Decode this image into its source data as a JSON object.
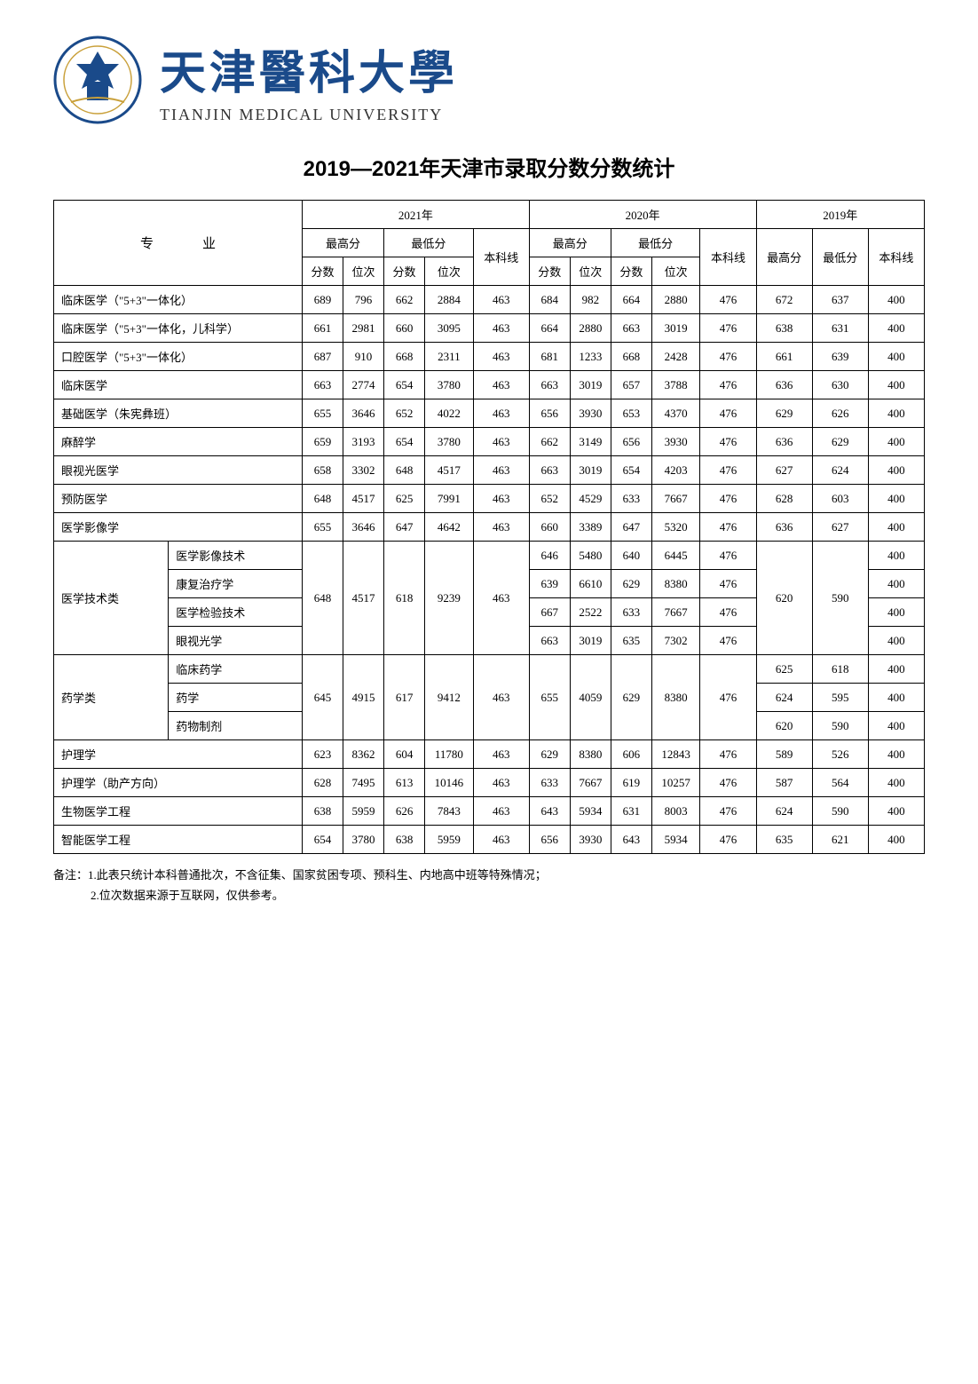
{
  "header": {
    "univ_cn": "天津醫科大學",
    "univ_en": "TIANJIN MEDICAL UNIVERSITY"
  },
  "title": "2019—2021年天津市录取分数分数统计",
  "table": {
    "header": {
      "major": "专　业",
      "year_2021": "2021年",
      "year_2020": "2020年",
      "year_2019": "2019年",
      "max": "最高分",
      "min": "最低分",
      "benke": "本科线",
      "score": "分数",
      "rank": "位次"
    },
    "rows": [
      {
        "name": "临床医学（\"5+3\"一体化）",
        "d": [
          689,
          796,
          662,
          2884,
          463,
          684,
          982,
          664,
          2880,
          476,
          672,
          637,
          400
        ]
      },
      {
        "name": "临床医学（\"5+3\"一体化，儿科学）",
        "d": [
          661,
          2981,
          660,
          3095,
          463,
          664,
          2880,
          663,
          3019,
          476,
          638,
          631,
          400
        ]
      },
      {
        "name": "口腔医学（\"5+3\"一体化）",
        "d": [
          687,
          910,
          668,
          2311,
          463,
          681,
          1233,
          668,
          2428,
          476,
          661,
          639,
          400
        ]
      },
      {
        "name": "临床医学",
        "d": [
          663,
          2774,
          654,
          3780,
          463,
          663,
          3019,
          657,
          3788,
          476,
          636,
          630,
          400
        ]
      },
      {
        "name": "基础医学（朱宪彝班）",
        "d": [
          655,
          3646,
          652,
          4022,
          463,
          656,
          3930,
          653,
          4370,
          476,
          629,
          626,
          400
        ]
      },
      {
        "name": "麻醉学",
        "d": [
          659,
          3193,
          654,
          3780,
          463,
          662,
          3149,
          656,
          3930,
          476,
          636,
          629,
          400
        ]
      },
      {
        "name": "眼视光医学",
        "d": [
          658,
          3302,
          648,
          4517,
          463,
          663,
          3019,
          654,
          4203,
          476,
          627,
          624,
          400
        ]
      },
      {
        "name": "预防医学",
        "d": [
          648,
          4517,
          625,
          7991,
          463,
          652,
          4529,
          633,
          7667,
          476,
          628,
          603,
          400
        ]
      },
      {
        "name": "医学影像学",
        "d": [
          655,
          3646,
          647,
          4642,
          463,
          660,
          3389,
          647,
          5320,
          476,
          636,
          627,
          400
        ]
      }
    ],
    "group_med_tech": {
      "group_name": "医学技术类",
      "shared_2021": [
        648,
        4517,
        618,
        9239,
        463
      ],
      "shared_2019": [
        620,
        590
      ],
      "subs": [
        {
          "name": "医学影像技术",
          "d2020": [
            646,
            5480,
            640,
            6445,
            476
          ],
          "bk2019": 400
        },
        {
          "name": "康复治疗学",
          "d2020": [
            639,
            6610,
            629,
            8380,
            476
          ],
          "bk2019": 400
        },
        {
          "name": "医学检验技术",
          "d2020": [
            667,
            2522,
            633,
            7667,
            476
          ],
          "bk2019": 400
        },
        {
          "name": "眼视光学",
          "d2020": [
            663,
            3019,
            635,
            7302,
            476
          ],
          "bk2019": 400
        }
      ]
    },
    "group_pharm": {
      "group_name": "药学类",
      "shared_2021": [
        645,
        4915,
        617,
        9412,
        463
      ],
      "shared_2020": [
        655,
        4059,
        629,
        8380,
        476
      ],
      "subs": [
        {
          "name": "临床药学",
          "d2019": [
            625,
            618,
            400
          ]
        },
        {
          "name": "药学",
          "d2019": [
            624,
            595,
            400
          ]
        },
        {
          "name": "药物制剂",
          "d2019": [
            620,
            590,
            400
          ]
        }
      ]
    },
    "rows_tail": [
      {
        "name": "护理学",
        "d": [
          623,
          8362,
          604,
          11780,
          463,
          629,
          8380,
          606,
          12843,
          476,
          589,
          526,
          400
        ]
      },
      {
        "name": "护理学（助产方向）",
        "d": [
          628,
          7495,
          613,
          10146,
          463,
          633,
          7667,
          619,
          10257,
          476,
          587,
          564,
          400
        ]
      },
      {
        "name": "生物医学工程",
        "d": [
          638,
          5959,
          626,
          7843,
          463,
          643,
          5934,
          631,
          8003,
          476,
          624,
          590,
          400
        ]
      },
      {
        "name": "智能医学工程",
        "d": [
          654,
          3780,
          638,
          5959,
          463,
          656,
          3930,
          643,
          5934,
          476,
          635,
          621,
          400
        ]
      }
    ]
  },
  "notes": {
    "n1": "备注：1.此表只统计本科普通批次，不含征集、国家贫困专项、预科生、内地高中班等特殊情况；",
    "n2": "2.位次数据来源于互联网，仅供参考。"
  },
  "style": {
    "border_color": "#000000",
    "bg_color": "#ffffff",
    "logo_main": "#1a4a8a",
    "logo_gold": "#c9a03a"
  }
}
